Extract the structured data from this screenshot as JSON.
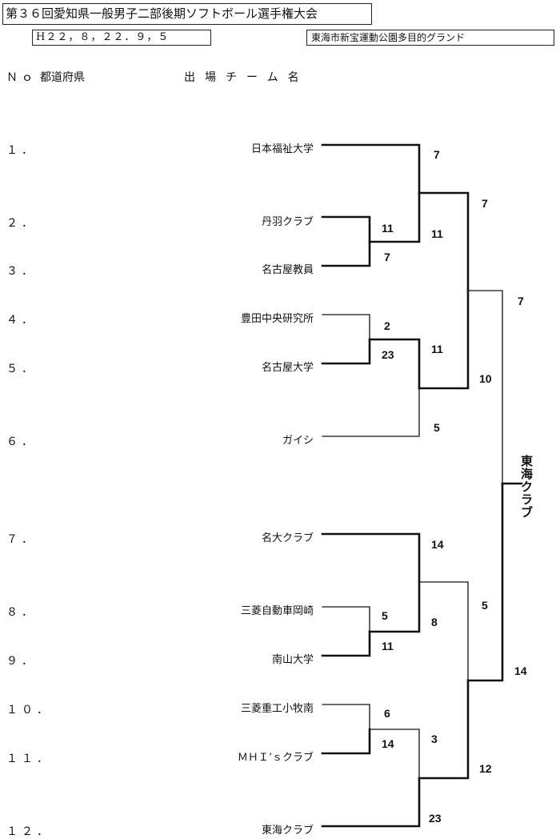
{
  "header": {
    "title": "第３６回愛知県一般男子二部後期ソフトボール選手権大会",
    "date": "H２２，８，２２．９，５",
    "venue": "東海市新宝運動公園多目的グランド"
  },
  "columns": {
    "no": "Ｎｏ",
    "prefecture": "都道府県",
    "team": "出場チーム名"
  },
  "entries": [
    {
      "no": "１．",
      "team": "日本福祉大学"
    },
    {
      "no": "２．",
      "team": "丹羽クラブ"
    },
    {
      "no": "３．",
      "team": "名古屋教員"
    },
    {
      "no": "４．",
      "team": "豊田中央研究所"
    },
    {
      "no": "５．",
      "team": "名古屋大学"
    },
    {
      "no": "６．",
      "team": "ガイシ"
    },
    {
      "no": "７．",
      "team": "名大クラブ"
    },
    {
      "no": "８．",
      "team": "三菱自動車岡崎"
    },
    {
      "no": "９．",
      "team": "南山大学"
    },
    {
      "no": "１０．",
      "team": "三菱重工小牧南"
    },
    {
      "no": "１１．",
      "team": "ＭＨＩ’ｓクラブ"
    },
    {
      "no": "１２．",
      "team": "東海クラブ"
    }
  ],
  "scores": {
    "r1_2": "11",
    "r1_3": "7",
    "r1_4": "2",
    "r1_5": "23",
    "r1_8": "5",
    "r1_9": "11",
    "r1_10": "6",
    "r1_11": "14",
    "r2_1": "7",
    "r2_23": "11",
    "r2_45": "11",
    "r2_6": "5",
    "r2_7": "14",
    "r2_89": "8",
    "r2_1011": "3",
    "r2_12": "23",
    "r3_top": "7",
    "r3_mid": "10",
    "r3_a": "5",
    "r3_b": "12",
    "sf_top": "7",
    "sf_bottom": "14"
  },
  "champion": "東海クラブ"
}
